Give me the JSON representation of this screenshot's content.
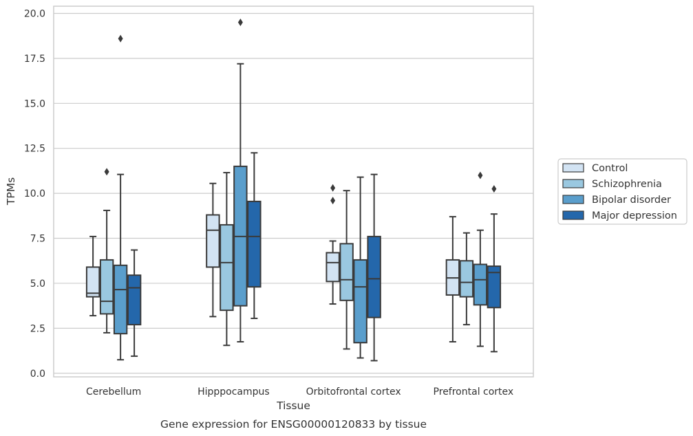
{
  "caption": "Gene expression for ENSG00000120833 by tissue",
  "chart_data": {
    "type": "box",
    "xlabel": "Tissue",
    "ylabel": "TPMs",
    "ylim": [
      -0.2,
      20.4
    ],
    "yticks": [
      0.0,
      2.5,
      5.0,
      7.5,
      10.0,
      12.5,
      15.0,
      17.5,
      20.0
    ],
    "ytick_labels": [
      "0.0",
      "2.5",
      "5.0",
      "7.5",
      "10.0",
      "12.5",
      "15.0",
      "17.5",
      "20.0"
    ],
    "grid": "horizontal",
    "legend_position": "right",
    "categories": [
      "Cerebellum",
      "Hipppocampus",
      "Orbitofrontal cortex",
      "Prefrontal cortex"
    ],
    "series": [
      {
        "name": "Control",
        "color": "#d2e3f3",
        "boxes": [
          {
            "whisker_low": 3.2,
            "q1": 4.25,
            "median": 4.45,
            "q3": 5.9,
            "whisker_high": 7.6,
            "outliers": []
          },
          {
            "whisker_low": 3.15,
            "q1": 5.9,
            "median": 7.95,
            "q3": 8.8,
            "whisker_high": 10.55,
            "outliers": []
          },
          {
            "whisker_low": 3.85,
            "q1": 5.1,
            "median": 6.15,
            "q3": 6.7,
            "whisker_high": 7.35,
            "outliers": [
              9.6,
              10.3
            ]
          },
          {
            "whisker_low": 1.75,
            "q1": 4.35,
            "median": 5.3,
            "q3": 6.3,
            "whisker_high": 8.7,
            "outliers": []
          }
        ]
      },
      {
        "name": "Schizophrenia",
        "color": "#9ac8e0",
        "boxes": [
          {
            "whisker_low": 2.25,
            "q1": 3.3,
            "median": 4.0,
            "q3": 6.3,
            "whisker_high": 9.05,
            "outliers": [
              11.2
            ]
          },
          {
            "whisker_low": 1.55,
            "q1": 3.5,
            "median": 6.15,
            "q3": 8.25,
            "whisker_high": 11.15,
            "outliers": []
          },
          {
            "whisker_low": 1.35,
            "q1": 4.05,
            "median": 5.2,
            "q3": 7.2,
            "whisker_high": 10.15,
            "outliers": []
          },
          {
            "whisker_low": 2.7,
            "q1": 4.25,
            "median": 5.05,
            "q3": 6.25,
            "whisker_high": 7.8,
            "outliers": []
          }
        ]
      },
      {
        "name": "Bipolar disorder",
        "color": "#5a9ecc",
        "boxes": [
          {
            "whisker_low": 0.75,
            "q1": 2.2,
            "median": 4.65,
            "q3": 6.0,
            "whisker_high": 11.05,
            "outliers": [
              18.6
            ]
          },
          {
            "whisker_low": 1.75,
            "q1": 3.75,
            "median": 7.6,
            "q3": 11.5,
            "whisker_high": 17.2,
            "outliers": [
              19.5
            ]
          },
          {
            "whisker_low": 0.85,
            "q1": 1.7,
            "median": 4.8,
            "q3": 6.3,
            "whisker_high": 10.9,
            "outliers": []
          },
          {
            "whisker_low": 1.5,
            "q1": 3.8,
            "median": 5.2,
            "q3": 6.05,
            "whisker_high": 7.95,
            "outliers": [
              11.0
            ]
          }
        ]
      },
      {
        "name": "Major depression",
        "color": "#2467ab",
        "boxes": [
          {
            "whisker_low": 0.95,
            "q1": 2.7,
            "median": 4.75,
            "q3": 5.45,
            "whisker_high": 6.85,
            "outliers": []
          },
          {
            "whisker_low": 3.05,
            "q1": 4.8,
            "median": 7.6,
            "q3": 9.55,
            "whisker_high": 12.25,
            "outliers": []
          },
          {
            "whisker_low": 0.7,
            "q1": 3.1,
            "median": 5.25,
            "q3": 7.6,
            "whisker_high": 11.05,
            "outliers": []
          },
          {
            "whisker_low": 1.2,
            "q1": 3.65,
            "median": 5.6,
            "q3": 5.95,
            "whisker_high": 8.85,
            "outliers": [
              10.25
            ]
          }
        ]
      }
    ]
  }
}
